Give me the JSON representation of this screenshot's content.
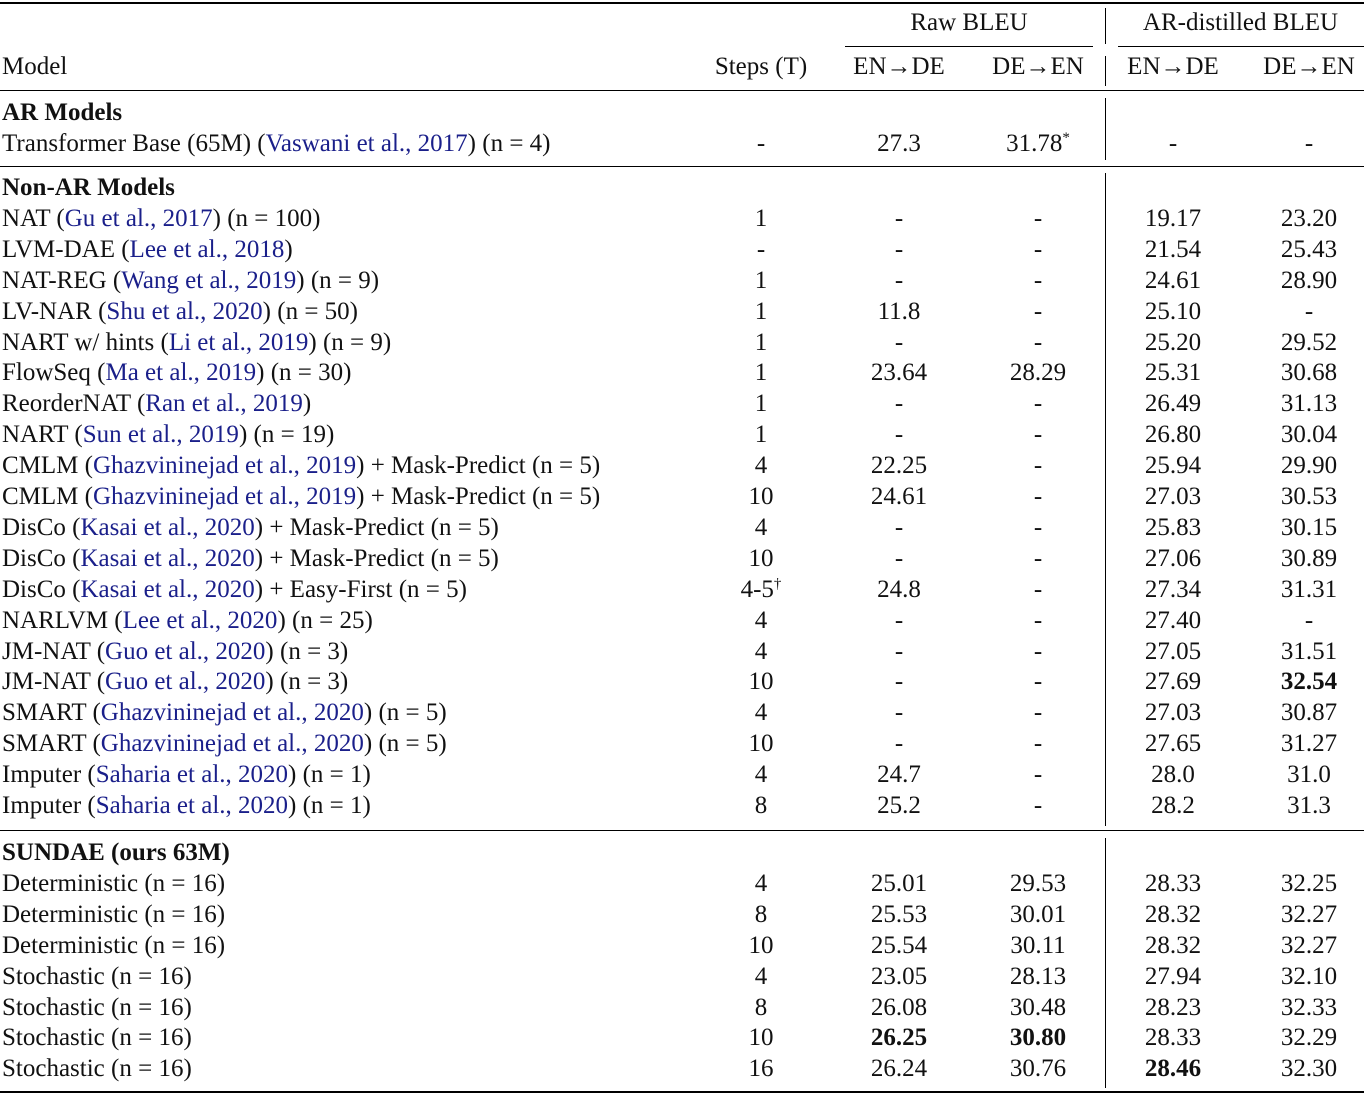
{
  "header": {
    "col_model": "Model",
    "col_steps": "Steps (T)",
    "group_raw": "Raw BLEU",
    "group_ar": "AR-distilled BLEU",
    "raw_en_de": "EN→DE",
    "raw_de_en": "DE→EN",
    "ar_en_de": "EN→DE",
    "ar_de_en": "DE→EN"
  },
  "sections": [
    {
      "title": "AR Models",
      "rows": [
        {
          "name": "Transformer Base (65M)",
          "cite": "Vaswani et al., 2017",
          "n": "(n = 4)",
          "steps": "-",
          "raw_en_de": "27.3",
          "raw_de_en": "31.78*",
          "ar_en_de": "-",
          "ar_de_en": "-"
        }
      ]
    },
    {
      "title": "Non-AR Models",
      "rows": [
        {
          "name": "NAT",
          "cite": "Gu et al., 2017",
          "n": "(n = 100)",
          "steps": "1",
          "raw_en_de": "-",
          "raw_de_en": "-",
          "ar_en_de": "19.17",
          "ar_de_en": "23.20"
        },
        {
          "name": "LVM-DAE",
          "cite": "Lee et al., 2018",
          "n": "",
          "steps": "-",
          "raw_en_de": "-",
          "raw_de_en": "-",
          "ar_en_de": "21.54",
          "ar_de_en": "25.43"
        },
        {
          "name": "NAT-REG",
          "cite": "Wang et al., 2019",
          "n": "(n = 9)",
          "steps": "1",
          "raw_en_de": "-",
          "raw_de_en": "-",
          "ar_en_de": "24.61",
          "ar_de_en": "28.90"
        },
        {
          "name": "LV-NAR",
          "cite": "Shu et al., 2020",
          "n": "(n = 50)",
          "steps": "1",
          "raw_en_de": "11.8",
          "raw_de_en": "-",
          "ar_en_de": "25.10",
          "ar_de_en": "-"
        },
        {
          "name": "NART w/ hints",
          "cite": "Li et al., 2019",
          "n": "(n = 9)",
          "steps": "1",
          "raw_en_de": "-",
          "raw_de_en": "-",
          "ar_en_de": "25.20",
          "ar_de_en": "29.52"
        },
        {
          "name": "FlowSeq",
          "cite": "Ma et al., 2019",
          "n": "(n = 30)",
          "steps": "1",
          "raw_en_de": "23.64",
          "raw_de_en": "28.29",
          "ar_en_de": "25.31",
          "ar_de_en": "30.68"
        },
        {
          "name": "ReorderNAT",
          "cite": "Ran et al., 2019",
          "n": "",
          "steps": "1",
          "raw_en_de": "-",
          "raw_de_en": "-",
          "ar_en_de": "26.49",
          "ar_de_en": "31.13"
        },
        {
          "name": "NART",
          "cite": "Sun et al., 2019",
          "n": "(n = 19)",
          "steps": "1",
          "raw_en_de": "-",
          "raw_de_en": "-",
          "ar_en_de": "26.80",
          "ar_de_en": "30.04"
        },
        {
          "name": "CMLM",
          "cite": "Ghazvininejad et al., 2019",
          "suffix": "+ Mask-Predict",
          "n": "(n = 5)",
          "steps": "4",
          "raw_en_de": "22.25",
          "raw_de_en": "-",
          "ar_en_de": "25.94",
          "ar_de_en": "29.90"
        },
        {
          "name": "CMLM",
          "cite": "Ghazvininejad et al., 2019",
          "suffix": "+ Mask-Predict",
          "n": "(n = 5)",
          "steps": "10",
          "raw_en_de": "24.61",
          "raw_de_en": "-",
          "ar_en_de": "27.03",
          "ar_de_en": "30.53"
        },
        {
          "name": "DisCo",
          "cite": "Kasai et al., 2020",
          "suffix": "+ Mask-Predict",
          "n": "(n = 5)",
          "steps": "4",
          "raw_en_de": "-",
          "raw_de_en": "-",
          "ar_en_de": "25.83",
          "ar_de_en": "30.15"
        },
        {
          "name": "DisCo",
          "cite": "Kasai et al., 2020",
          "suffix": "+ Mask-Predict",
          "n": "(n = 5)",
          "steps": "10",
          "raw_en_de": "-",
          "raw_de_en": "-",
          "ar_en_de": "27.06",
          "ar_de_en": "30.89"
        },
        {
          "name": "DisCo",
          "cite": "Kasai et al., 2020",
          "suffix": "+ Easy-First",
          "n": "(n = 5)",
          "steps": "4-5†",
          "raw_en_de": "24.8",
          "raw_de_en": "-",
          "ar_en_de": "27.34",
          "ar_de_en": "31.31"
        },
        {
          "name": "NARLVM",
          "cite": "Lee et al., 2020",
          "n": "(n = 25)",
          "steps": "4",
          "raw_en_de": "-",
          "raw_de_en": "-",
          "ar_en_de": "27.40",
          "ar_de_en": "-"
        },
        {
          "name": "JM-NAT",
          "cite": "Guo et al., 2020",
          "n": "(n = 3)",
          "steps": "4",
          "raw_en_de": "-",
          "raw_de_en": "-",
          "ar_en_de": "27.05",
          "ar_de_en": "31.51"
        },
        {
          "name": "JM-NAT",
          "cite": "Guo et al., 2020",
          "n": "(n = 3)",
          "steps": "10",
          "raw_en_de": "-",
          "raw_de_en": "-",
          "ar_en_de": "27.69",
          "ar_de_en": "32.54",
          "bold": [
            "ar_de_en"
          ]
        },
        {
          "name": "SMART",
          "cite": "Ghazvininejad et al., 2020",
          "n": "(n = 5)",
          "steps": "4",
          "raw_en_de": "-",
          "raw_de_en": "-",
          "ar_en_de": "27.03",
          "ar_de_en": "30.87"
        },
        {
          "name": "SMART",
          "cite": "Ghazvininejad et al., 2020",
          "n": "(n = 5)",
          "steps": "10",
          "raw_en_de": "-",
          "raw_de_en": "-",
          "ar_en_de": "27.65",
          "ar_de_en": "31.27"
        },
        {
          "name": "Imputer",
          "cite": "Saharia et al., 2020",
          "n": "(n = 1)",
          "steps": "4",
          "raw_en_de": "24.7",
          "raw_de_en": "-",
          "ar_en_de": "28.0",
          "ar_de_en": "31.0"
        },
        {
          "name": "Imputer",
          "cite": "Saharia et al., 2020",
          "n": "(n = 1)",
          "steps": "8",
          "raw_en_de": "25.2",
          "raw_de_en": "-",
          "ar_en_de": "28.2",
          "ar_de_en": "31.3"
        }
      ]
    },
    {
      "title": "SUNDAE (ours 63M)",
      "rows": [
        {
          "name": "Deterministic",
          "cite": "",
          "n": "(n = 16)",
          "steps": "4",
          "raw_en_de": "25.01",
          "raw_de_en": "29.53",
          "ar_en_de": "28.33",
          "ar_de_en": "32.25"
        },
        {
          "name": "Deterministic",
          "cite": "",
          "n": "(n = 16)",
          "steps": "8",
          "raw_en_de": "25.53",
          "raw_de_en": "30.01",
          "ar_en_de": "28.32",
          "ar_de_en": "32.27"
        },
        {
          "name": "Deterministic",
          "cite": "",
          "n": "(n = 16)",
          "steps": "10",
          "raw_en_de": "25.54",
          "raw_de_en": "30.11",
          "ar_en_de": "28.32",
          "ar_de_en": "32.27"
        },
        {
          "name": "Stochastic",
          "cite": "",
          "n": "(n = 16)",
          "steps": "4",
          "raw_en_de": "23.05",
          "raw_de_en": "28.13",
          "ar_en_de": "27.94",
          "ar_de_en": "32.10"
        },
        {
          "name": "Stochastic",
          "cite": "",
          "n": "(n = 16)",
          "steps": "8",
          "raw_en_de": "26.08",
          "raw_de_en": "30.48",
          "ar_en_de": "28.23",
          "ar_de_en": "32.33"
        },
        {
          "name": "Stochastic",
          "cite": "",
          "n": "(n = 16)",
          "steps": "10",
          "raw_en_de": "26.25",
          "raw_de_en": "30.80",
          "ar_en_de": "28.33",
          "ar_de_en": "32.29",
          "bold": [
            "raw_en_de",
            "raw_de_en"
          ]
        },
        {
          "name": "Stochastic",
          "cite": "",
          "n": "(n = 16)",
          "steps": "16",
          "raw_en_de": "26.24",
          "raw_de_en": "30.76",
          "ar_en_de": "28.46",
          "ar_de_en": "32.30",
          "bold": [
            "ar_en_de"
          ]
        }
      ]
    }
  ]
}
